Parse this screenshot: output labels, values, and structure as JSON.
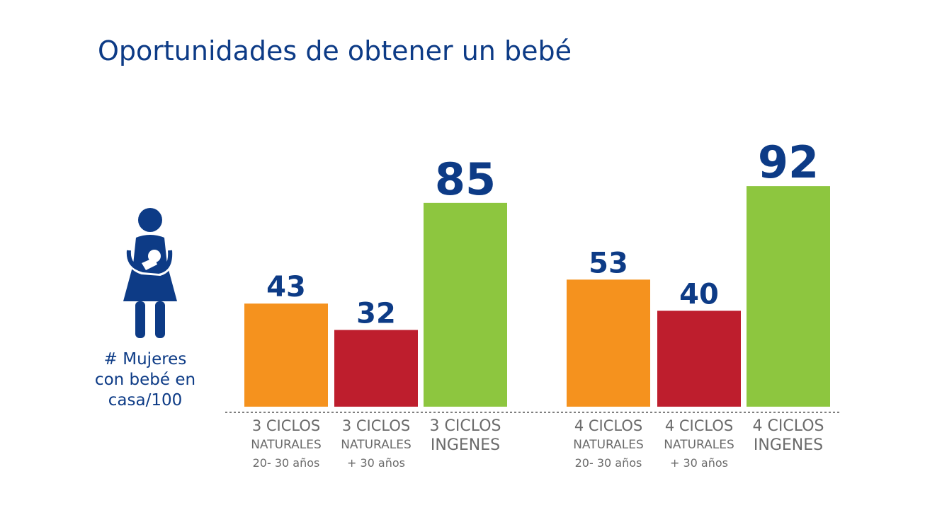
{
  "chart_data": {
    "type": "bar",
    "title": "Oportunidades de obtener un bebé",
    "ylabel_lines": [
      "# Mujeres",
      "con bebé en",
      "casa/100"
    ],
    "categories": [
      {
        "lines": [
          "3 CICLOS",
          "NATURALES",
          "20- 30 años"
        ],
        "style": "small"
      },
      {
        "lines": [
          "3 CICLOS",
          "NATURALES",
          "+ 30 años"
        ],
        "style": "small"
      },
      {
        "lines": [
          "3 CICLOS",
          "INGENES"
        ],
        "style": "large"
      },
      {
        "lines": [
          "4 CICLOS",
          "NATURALES",
          "20- 30 años"
        ],
        "style": "small"
      },
      {
        "lines": [
          "4 CICLOS",
          "NATURALES",
          "+ 30 años"
        ],
        "style": "small"
      },
      {
        "lines": [
          "4 CICLOS",
          "INGENES"
        ],
        "style": "large"
      }
    ],
    "values": [
      43,
      32,
      85,
      53,
      40,
      92
    ],
    "colors": [
      "#f5921e",
      "#be1e2d",
      "#8dc63f",
      "#f5921e",
      "#be1e2d",
      "#8dc63f"
    ],
    "value_label_color": "#0d3b86",
    "ylim": [
      0,
      100
    ],
    "grid": false,
    "baseline": "dashed"
  },
  "icon": "woman-holding-baby-icon"
}
